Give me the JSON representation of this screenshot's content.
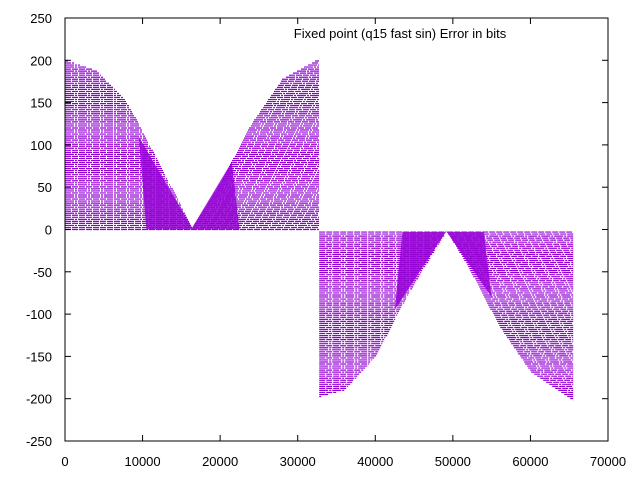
{
  "chart_data": {
    "type": "scatter",
    "title": "Fixed point (q15 fast sin) Error in bits",
    "xlabel": "",
    "ylabel": "",
    "xlim": [
      0,
      70000
    ],
    "ylim": [
      -250,
      250
    ],
    "grid": false,
    "legend": null,
    "x_ticks": [
      "0",
      "10000",
      "20000",
      "30000",
      "40000",
      "50000",
      "60000",
      "70000"
    ],
    "y_ticks": [
      "250",
      "200",
      "150",
      "100",
      "50",
      "0",
      "-50",
      "-100",
      "-150",
      "-200",
      "-250"
    ],
    "series_color": "#9400d3",
    "series": [
      {
        "name": "error",
        "description": "Dense banded scatter of error values; positive lobe for x in [0, 32768], negative lobe for x in [32768, 65536]",
        "envelope_upper": {
          "x": [
            0,
            4000,
            8000,
            12000,
            16384,
            20000,
            24000,
            28000,
            32768
          ],
          "y": [
            200,
            188,
            150,
            80,
            2,
            55,
            125,
            178,
            202
          ]
        },
        "envelope_lower": {
          "x": [
            32768,
            36000,
            40000,
            44000,
            49152,
            52000,
            56000,
            60000,
            65536
          ],
          "y": [
            -198,
            -190,
            -150,
            -80,
            -2,
            -45,
            -115,
            -168,
            -203
          ]
        },
        "baseline_upper_segment": 0,
        "baseline_lower_segment": -3
      }
    ]
  }
}
